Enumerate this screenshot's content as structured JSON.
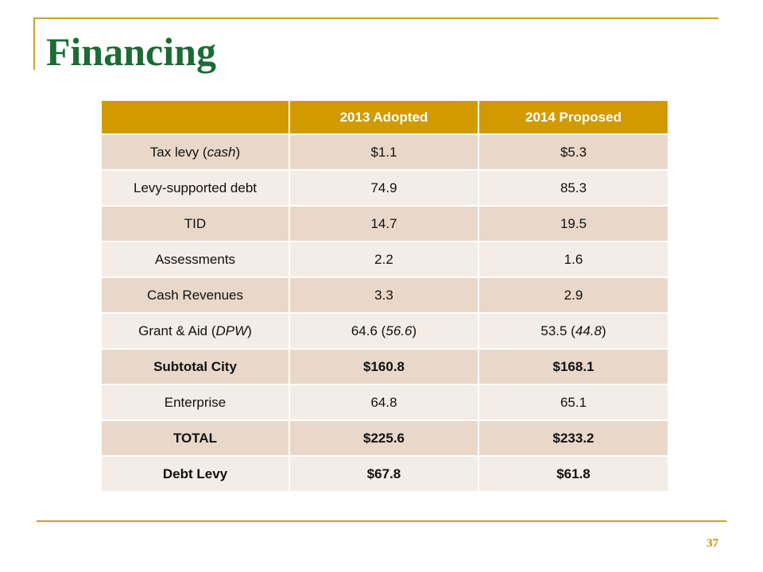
{
  "slide": {
    "title": "Financing",
    "page_number": "37"
  },
  "table": {
    "headers": [
      "",
      "2013 Adopted",
      "2014 Proposed"
    ],
    "rows": [
      {
        "label": "Tax levy (cash)",
        "y2013": "$1.1",
        "y2014": "$5.3",
        "bold": false
      },
      {
        "label": "Levy-supported debt",
        "y2013": "74.9",
        "y2014": "85.3",
        "bold": false
      },
      {
        "label": "TID",
        "y2013": "14.7",
        "y2014": "19.5",
        "bold": false
      },
      {
        "label": "Assessments",
        "y2013": "2.2",
        "y2014": "1.6",
        "bold": false
      },
      {
        "label": "Cash Revenues",
        "y2013": "3.3",
        "y2014": "2.9",
        "bold": false
      },
      {
        "label": "Grant & Aid (DPW)",
        "y2013": "64.6 (56.6)",
        "y2014": "53.5 (44.8)",
        "bold": false
      },
      {
        "label": "Subtotal City",
        "y2013": "$160.8",
        "y2014": "$168.1",
        "bold": true
      },
      {
        "label": "Enterprise",
        "y2013": "64.8",
        "y2014": "65.1",
        "bold": false
      },
      {
        "label": "TOTAL",
        "y2013": "$225.6",
        "y2014": "$233.2",
        "bold": true
      },
      {
        "label": "Debt Levy",
        "y2013": "$67.8",
        "y2014": "$61.8",
        "bold": true
      }
    ]
  },
  "colors": {
    "title": "#1b6b35",
    "accent_rule": "#c9a227",
    "header_fill": "#d19b00",
    "row_fill_dark": "#e9d8c9",
    "row_fill_light": "#f4ece6"
  }
}
